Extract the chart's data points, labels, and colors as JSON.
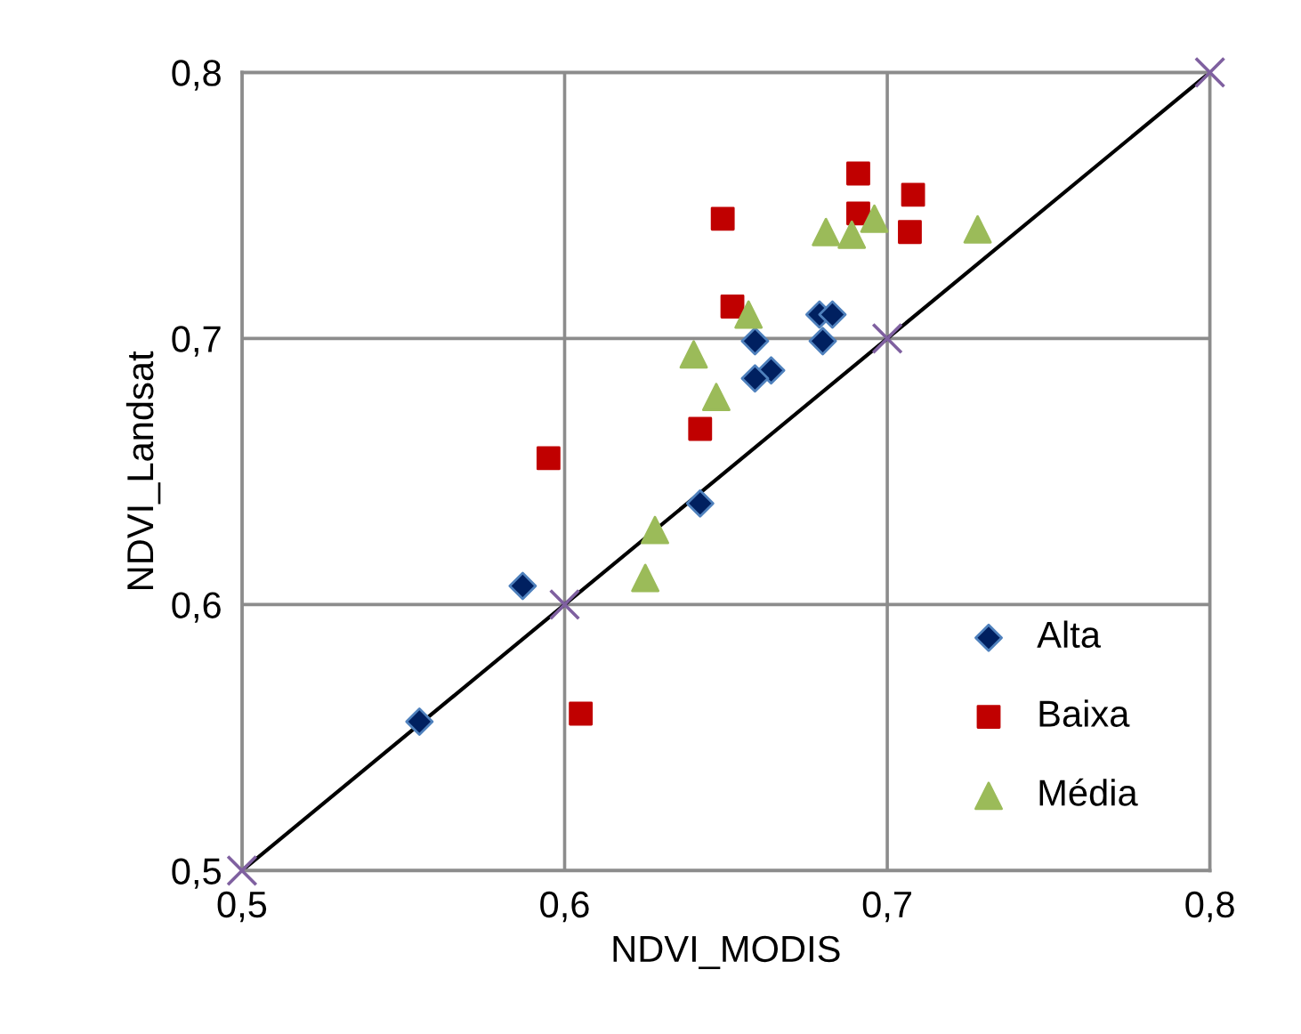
{
  "chart_data": {
    "type": "scatter",
    "xlabel": "NDVI_MODIS",
    "ylabel": "NDVI_Landsat",
    "xlim": [
      0.5,
      0.8
    ],
    "ylim": [
      0.5,
      0.8
    ],
    "xticks": [
      {
        "value": 0.5,
        "label": "0,5"
      },
      {
        "value": 0.6,
        "label": "0,6"
      },
      {
        "value": 0.7,
        "label": "0,7"
      },
      {
        "value": 0.8,
        "label": "0,8"
      }
    ],
    "yticks": [
      {
        "value": 0.5,
        "label": "0,5"
      },
      {
        "value": 0.6,
        "label": "0,6"
      },
      {
        "value": 0.7,
        "label": "0,7"
      },
      {
        "value": 0.8,
        "label": "0,8"
      }
    ],
    "grid": true,
    "legend": "bottom right",
    "series": [
      {
        "name": "Alta",
        "marker": "diamond",
        "color": "#002060",
        "x": [
          0.555,
          0.587,
          0.642,
          0.659,
          0.664,
          0.659,
          0.679,
          0.683,
          0.68
        ],
        "values": [
          0.556,
          0.607,
          0.638,
          0.699,
          0.688,
          0.685,
          0.709,
          0.709,
          0.699
        ]
      },
      {
        "name": "Baixa",
        "marker": "square",
        "color": "#c00000",
        "x": [
          0.691,
          0.708,
          0.649,
          0.707,
          0.691,
          0.652,
          0.642,
          0.595,
          0.605
        ],
        "values": [
          0.762,
          0.754,
          0.745,
          0.74,
          0.747,
          0.712,
          0.666,
          0.655,
          0.559
        ]
      },
      {
        "name": "Média",
        "marker": "triangle",
        "color": "#9bbb59",
        "x": [
          0.681,
          0.689,
          0.696,
          0.728,
          0.657,
          0.64,
          0.647,
          0.628,
          0.625
        ],
        "values": [
          0.74,
          0.739,
          0.745,
          0.741,
          0.709,
          0.694,
          0.678,
          0.628,
          0.61
        ]
      },
      {
        "type": "line",
        "marker": "none",
        "line_style": "solid",
        "color": "#000000",
        "x": [
          0.5,
          0.6,
          0.7,
          0.8
        ],
        "values": [
          0.5,
          0.6,
          0.7,
          0.8
        ]
      },
      {
        "marker": "cross",
        "color": "#7f60a0",
        "x": [
          0.5,
          0.6,
          0.7,
          0.8
        ],
        "values": [
          0.5,
          0.6,
          0.7,
          0.8
        ]
      }
    ]
  }
}
